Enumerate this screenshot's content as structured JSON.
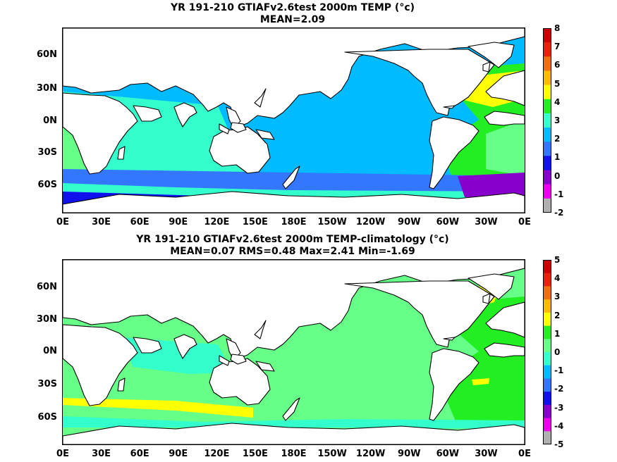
{
  "panels": [
    {
      "title_line1": "YR 191-210 GTIAFv2.6test 2000m TEMP (°c)",
      "title_line2": "MEAN=2.09",
      "lat_labels": [
        "60N",
        "30N",
        "0N",
        "30S",
        "60S"
      ],
      "lon_labels": [
        "0E",
        "30E",
        "60E",
        "90E",
        "120E",
        "150E",
        "180E",
        "150W",
        "120W",
        "90W",
        "60W",
        "30W",
        "0E"
      ],
      "colorbar_labels": [
        "8",
        "7",
        "6",
        "5",
        "4",
        "3",
        "2",
        "1",
        "0",
        "-1",
        "-2"
      ],
      "colorbar_colors": [
        "#cc0000",
        "#e8230a",
        "#f07010",
        "#ffbb00",
        "#ffff00",
        "#22ee22",
        "#33ffcc",
        "#00bbff",
        "#3377ff",
        "#1111ee",
        "#8800cc",
        "#ee00ee",
        "#b0b0b0"
      ]
    },
    {
      "title_line1": "YR 191-210 GTIAFv2.6test 2000m TEMP-climatology (°c)",
      "title_line2": "MEAN=0.07   RMS=0.48   Max=2.41   Min=-1.69",
      "lat_labels": [
        "60N",
        "30N",
        "0N",
        "30S",
        "60S"
      ],
      "lon_labels": [
        "0E",
        "30E",
        "60E",
        "90E",
        "120E",
        "150E",
        "180E",
        "150W",
        "120W",
        "90W",
        "60W",
        "30W",
        "0E"
      ],
      "colorbar_labels": [
        "5",
        "4",
        "3",
        "2",
        "1",
        "0",
        "-1",
        "-2",
        "-3",
        "-4",
        "-5"
      ],
      "colorbar_colors": [
        "#cc0000",
        "#e8230a",
        "#f07010",
        "#ffbb00",
        "#ffff00",
        "#22ee22",
        "#66ff88",
        "#33ffcc",
        "#00bbff",
        "#3377ff",
        "#1111ee",
        "#8800cc",
        "#ee00ee",
        "#b0b0b0"
      ]
    }
  ],
  "colors": {
    "land": "#ffffff",
    "coast": "#000000",
    "top_main_ocean": "#00bbff",
    "top_indian_ocean": "#33ffcc",
    "top_atlantic_north": "#ffff00",
    "top_atlantic": "#22ee22",
    "top_atlantic_south": "#66ff88",
    "top_southern": "#3377ff",
    "top_antarctic": "#1111ee",
    "top_violet": "#8800cc",
    "bottom_main_ocean": "#66ff88",
    "bottom_atlantic": "#22ee22",
    "bottom_anom_pos": "#ffff00",
    "bottom_anom_neg": "#33ffcc"
  }
}
